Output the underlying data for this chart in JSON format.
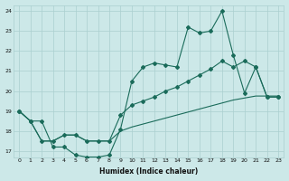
{
  "xlabel": "Humidex (Indice chaleur)",
  "bg_color": "#cce8e8",
  "grid_color": "#aacfcf",
  "line_color": "#1a6b5a",
  "xlim": [
    -0.5,
    23.5
  ],
  "ylim": [
    16.7,
    24.3
  ],
  "yticks": [
    17,
    18,
    19,
    20,
    21,
    22,
    23,
    24
  ],
  "xticks": [
    0,
    1,
    2,
    3,
    4,
    5,
    6,
    7,
    8,
    9,
    10,
    11,
    12,
    13,
    14,
    15,
    16,
    17,
    18,
    19,
    20,
    21,
    22,
    23
  ],
  "line1_x": [
    0,
    1,
    2,
    3,
    4,
    5,
    6,
    7,
    8,
    9,
    10,
    11,
    12,
    13,
    14,
    15,
    16,
    17,
    18,
    19,
    20,
    21,
    22,
    23
  ],
  "line1_y": [
    19.0,
    18.5,
    18.5,
    17.2,
    17.2,
    16.8,
    16.7,
    16.7,
    16.8,
    18.1,
    20.5,
    21.2,
    21.4,
    21.3,
    21.2,
    23.2,
    22.9,
    23.0,
    24.0,
    21.8,
    19.9,
    21.2,
    19.7,
    19.7
  ],
  "line2_x": [
    0,
    1,
    2,
    3,
    4,
    5,
    6,
    7,
    8,
    9,
    10,
    11,
    12,
    13,
    14,
    15,
    16,
    17,
    18,
    19,
    20,
    21,
    22,
    23
  ],
  "line2_y": [
    19.0,
    18.5,
    17.5,
    17.5,
    17.8,
    17.8,
    17.5,
    17.5,
    17.5,
    18.8,
    19.3,
    19.5,
    19.7,
    20.0,
    20.2,
    20.5,
    20.8,
    21.1,
    21.5,
    21.2,
    21.5,
    21.2,
    19.7,
    19.7
  ],
  "line3_x": [
    0,
    1,
    2,
    3,
    4,
    5,
    6,
    7,
    8,
    9,
    10,
    11,
    12,
    13,
    14,
    15,
    16,
    17,
    18,
    19,
    20,
    21,
    22,
    23
  ],
  "line3_y": [
    19.0,
    18.5,
    17.5,
    17.5,
    17.8,
    17.8,
    17.5,
    17.5,
    17.5,
    18.0,
    18.2,
    18.35,
    18.5,
    18.65,
    18.8,
    18.95,
    19.1,
    19.25,
    19.4,
    19.55,
    19.65,
    19.75,
    19.75,
    19.75
  ]
}
